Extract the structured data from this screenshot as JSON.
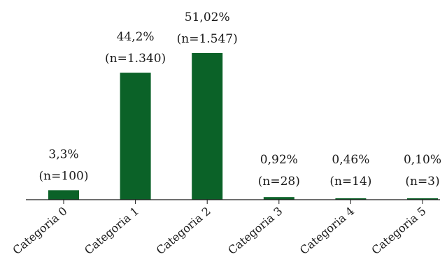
{
  "chart_data": {
    "type": "bar",
    "categories": [
      "Categoria 0",
      "Categoria 1",
      "Categoria 2",
      "Categoria 3",
      "Categoria 4",
      "Categoria 5"
    ],
    "values": [
      3.3,
      44.2,
      51.02,
      0.92,
      0.46,
      0.1
    ],
    "value_labels": [
      "3,3%",
      "44,2%",
      "51,02%",
      "0,92%",
      "0,46%",
      "0,10%"
    ],
    "count_labels": [
      "(n=100)",
      "(n=1.340)",
      "(n=1.547)",
      "(n=28)",
      "(n=14)",
      "(n=3)"
    ],
    "title": "",
    "xlabel": "",
    "ylabel": "",
    "ylim": [
      0,
      55
    ],
    "grid": false,
    "bar_color": "#0b6228",
    "axis_color": "#1a1a1a"
  }
}
